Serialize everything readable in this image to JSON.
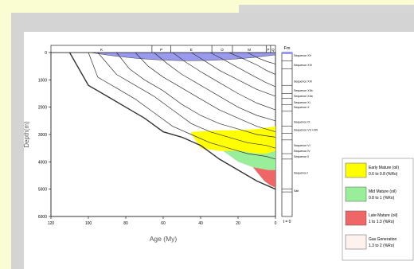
{
  "chart_data": {
    "type": "area",
    "xlabel": "Age (My)",
    "ylabel": "Depth(m)",
    "xlim": [
      120,
      0
    ],
    "ylim": [
      0,
      6000
    ],
    "x_ticks": [
      "120",
      "100",
      "80",
      "60",
      "40",
      "20",
      "0"
    ],
    "y_ticks": [
      "0",
      "1000",
      "2000",
      "3000",
      "4000",
      "5000",
      "6000"
    ],
    "period_labels": [
      "K",
      "P",
      "E",
      "O",
      "M",
      "P",
      "Q"
    ],
    "formation_header": "Fm",
    "formations": [
      "Sequence XV",
      "Sequence XIV",
      "Sequence XIII",
      "Sequence XIIb",
      "Sequence XIIa",
      "Sequence XI",
      "Sequence X",
      "Sequence IX",
      "Sequence VII +VIII",
      "Sequence VI",
      "Sequence IV",
      "Sequence II",
      "Sequence I",
      "Salt"
    ],
    "bottom_label": "t = 0",
    "horizons": [
      {
        "x": [
          110,
          100,
          90,
          80,
          70,
          60,
          50,
          40,
          30,
          20,
          10,
          0
        ],
        "y": [
          0,
          1200,
          1600,
          2000,
          2400,
          2900,
          3100,
          3400,
          3900,
          4300,
          4700,
          5000
        ]
      },
      {
        "x": [
          100,
          95,
          85,
          75,
          65,
          55,
          45,
          35,
          25,
          15,
          5,
          0
        ],
        "y": [
          0,
          900,
          1300,
          1700,
          2200,
          2700,
          3000,
          3300,
          3500,
          3700,
          3800,
          3900
        ]
      },
      {
        "x": [
          95,
          85,
          75,
          65,
          55,
          45,
          35,
          25,
          15,
          5,
          0
        ],
        "y": [
          0,
          800,
          1200,
          1600,
          2100,
          2600,
          2900,
          3100,
          3300,
          3400,
          3500
        ]
      },
      {
        "x": [
          85,
          78,
          70,
          60,
          50,
          40,
          30,
          20,
          10,
          0
        ],
        "y": [
          0,
          600,
          1000,
          1400,
          1900,
          2300,
          2600,
          2800,
          3000,
          3100
        ]
      },
      {
        "x": [
          75,
          68,
          60,
          50,
          40,
          30,
          20,
          10,
          0
        ],
        "y": [
          0,
          500,
          900,
          1300,
          1700,
          2100,
          2400,
          2700,
          2900
        ]
      },
      {
        "x": [
          65,
          58,
          50,
          40,
          30,
          20,
          10,
          0
        ],
        "y": [
          0,
          400,
          800,
          1200,
          1600,
          2000,
          2300,
          2500
        ]
      },
      {
        "x": [
          55,
          48,
          40,
          30,
          20,
          10,
          0
        ],
        "y": [
          0,
          350,
          700,
          1100,
          1500,
          1850,
          2100
        ]
      },
      {
        "x": [
          45,
          38,
          30,
          20,
          10,
          0
        ],
        "y": [
          0,
          300,
          650,
          1000,
          1350,
          1600
        ]
      },
      {
        "x": [
          35,
          28,
          20,
          12,
          5,
          0
        ],
        "y": [
          0,
          250,
          550,
          850,
          1100,
          1250
        ]
      },
      {
        "x": [
          25,
          18,
          10,
          5,
          0
        ],
        "y": [
          0,
          200,
          450,
          650,
          800
        ]
      },
      {
        "x": [
          15,
          10,
          5,
          0
        ],
        "y": [
          0,
          180,
          320,
          420
        ]
      }
    ],
    "series": [
      {
        "name": "Early Mature (oil) 0.6 to 0.8 (%Ro)",
        "color": "#ffff00",
        "x": [
          45,
          38,
          30,
          20,
          10,
          0,
          0,
          5,
          10,
          20,
          30,
          40,
          45
        ],
        "y": [
          2900,
          2880,
          2850,
          2850,
          2800,
          2700,
          3600,
          3700,
          3700,
          3600,
          3600,
          3500,
          3000
        ]
      },
      {
        "name": "Mid Mature (oil) 0.8 to 1 (%Ro)",
        "color": "#99ee99",
        "x": [
          28,
          20,
          10,
          5,
          0,
          0,
          5,
          10,
          20,
          28
        ],
        "y": [
          3600,
          3600,
          3700,
          3700,
          3600,
          4300,
          4300,
          4250,
          4000,
          3600
        ]
      },
      {
        "name": "Late Mature (oil) 1 to 1.3 (%Ro)",
        "color": "#ee6666",
        "x": [
          12,
          8,
          4,
          0,
          0,
          3,
          6,
          12
        ],
        "y": [
          4200,
          4250,
          4300,
          4300,
          4950,
          4850,
          4700,
          4200
        ]
      },
      {
        "name": "Gas Generation 1.3 to 2 (%Ro)",
        "color": "#fdf2ee",
        "x": [],
        "y": []
      }
    ],
    "water_color": "#9999ee",
    "legend_position": "right"
  }
}
